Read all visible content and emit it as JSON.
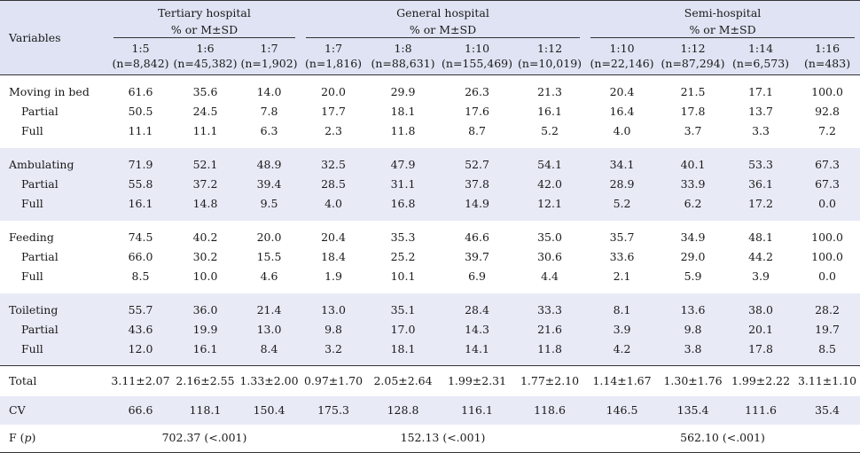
{
  "header": {
    "variables_label": "Variables",
    "groups": [
      {
        "name": "Tertiary hospital",
        "sub": "% or M±SD"
      },
      {
        "name": "General hospital",
        "sub": "% or M±SD"
      },
      {
        "name": "Semi-hospital",
        "sub": "% or M±SD"
      }
    ],
    "columns": [
      {
        "ratio": "1:5",
        "n": "(n=8,842)"
      },
      {
        "ratio": "1:6",
        "n": "(n=45,382)"
      },
      {
        "ratio": "1:7",
        "n": "(n=1,902)"
      },
      {
        "ratio": "1:7",
        "n": "(n=1,816)"
      },
      {
        "ratio": "1:8",
        "n": "(n=88,631)"
      },
      {
        "ratio": "1:10",
        "n": "(n=155,469)"
      },
      {
        "ratio": "1:12",
        "n": "(n=10,019)"
      },
      {
        "ratio": "1:10",
        "n": "(n=22,146)"
      },
      {
        "ratio": "1:12",
        "n": "(n=87,294)"
      },
      {
        "ratio": "1:14",
        "n": "(n=6,573)"
      },
      {
        "ratio": "1:16",
        "n": "(n=483)"
      }
    ]
  },
  "blocks": [
    {
      "rows": [
        {
          "label": "Moving in bed",
          "values": [
            "61.6",
            "35.6",
            "14.0",
            "20.0",
            "29.9",
            "26.3",
            "21.3",
            "20.4",
            "21.5",
            "17.1",
            "100.0"
          ]
        },
        {
          "label": "Partial",
          "values": [
            "50.5",
            "24.5",
            "7.8",
            "17.7",
            "18.1",
            "17.6",
            "16.1",
            "16.4",
            "17.8",
            "13.7",
            "92.8"
          ]
        },
        {
          "label": "Full",
          "values": [
            "11.1",
            "11.1",
            "6.3",
            "2.3",
            "11.8",
            "8.7",
            "5.2",
            "4.0",
            "3.7",
            "3.3",
            "7.2"
          ]
        }
      ]
    },
    {
      "rows": [
        {
          "label": "Ambulating",
          "values": [
            "71.9",
            "52.1",
            "48.9",
            "32.5",
            "47.9",
            "52.7",
            "54.1",
            "34.1",
            "40.1",
            "53.3",
            "67.3"
          ]
        },
        {
          "label": "Partial",
          "values": [
            "55.8",
            "37.2",
            "39.4",
            "28.5",
            "31.1",
            "37.8",
            "42.0",
            "28.9",
            "33.9",
            "36.1",
            "67.3"
          ]
        },
        {
          "label": "Full",
          "values": [
            "16.1",
            "14.8",
            "9.5",
            "4.0",
            "16.8",
            "14.9",
            "12.1",
            "5.2",
            "6.2",
            "17.2",
            "0.0"
          ]
        }
      ]
    },
    {
      "rows": [
        {
          "label": "Feeding",
          "values": [
            "74.5",
            "40.2",
            "20.0",
            "20.4",
            "35.3",
            "46.6",
            "35.0",
            "35.7",
            "34.9",
            "48.1",
            "100.0"
          ]
        },
        {
          "label": "Partial",
          "values": [
            "66.0",
            "30.2",
            "15.5",
            "18.4",
            "25.2",
            "39.7",
            "30.6",
            "33.6",
            "29.0",
            "44.2",
            "100.0"
          ]
        },
        {
          "label": "Full",
          "values": [
            "8.5",
            "10.0",
            "4.6",
            "1.9",
            "10.1",
            "6.9",
            "4.4",
            "2.1",
            "5.9",
            "3.9",
            "0.0"
          ]
        }
      ]
    },
    {
      "rows": [
        {
          "label": "Toileting",
          "values": [
            "55.7",
            "36.0",
            "21.4",
            "13.0",
            "35.1",
            "28.4",
            "33.3",
            "8.1",
            "13.6",
            "38.0",
            "28.2"
          ]
        },
        {
          "label": "Partial",
          "values": [
            "43.6",
            "19.9",
            "13.0",
            "9.8",
            "17.0",
            "14.3",
            "21.6",
            "3.9",
            "9.8",
            "20.1",
            "19.7"
          ]
        },
        {
          "label": "Full",
          "values": [
            "12.0",
            "16.1",
            "8.4",
            "3.2",
            "18.1",
            "14.1",
            "11.8",
            "4.2",
            "3.8",
            "17.8",
            "8.5"
          ]
        }
      ]
    }
  ],
  "total": {
    "label": "Total",
    "values": [
      "3.11±2.07",
      "2.16±2.55",
      "1.33±2.00",
      "0.97±1.70",
      "2.05±2.64",
      "1.99±2.31",
      "1.77±2.10",
      "1.14±1.67",
      "1.30±1.76",
      "1.99±2.22",
      "3.11±1.10"
    ]
  },
  "cv": {
    "label": "CV",
    "values": [
      "66.6",
      "118.1",
      "150.4",
      "175.3",
      "128.8",
      "116.1",
      "118.6",
      "146.5",
      "135.4",
      "111.6",
      "35.4"
    ]
  },
  "f": {
    "label_prefix": "F (",
    "label_p": "p",
    "label_suffix": ")",
    "values": [
      "702.37 (<.001)",
      "152.13 (<.001)",
      "562.10 (<.001)"
    ]
  },
  "colors": {
    "header_bg": "#dfe3f3",
    "band_bg": "#e8eaf6",
    "rule": "#333333"
  }
}
